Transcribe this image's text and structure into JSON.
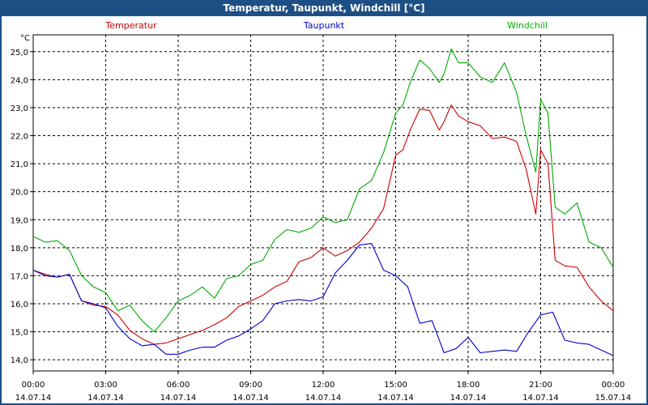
{
  "window": {
    "title": "Temperatur, Taupunkt, Windchill [°C]"
  },
  "chart_data": {
    "type": "line",
    "title": "Temperatur, Taupunkt, Windchill [°C]",
    "ylabel": "°C",
    "ylim": [
      13.6,
      25.6
    ],
    "yticks": [
      14.0,
      15.0,
      16.0,
      17.0,
      18.0,
      19.0,
      20.0,
      21.0,
      22.0,
      23.0,
      24.0,
      25.0
    ],
    "ytick_labels": [
      "14,0",
      "15,0",
      "16,0",
      "17,0",
      "18,0",
      "19,0",
      "20,0",
      "21,0",
      "22,0",
      "23,0",
      "24,0",
      "25,0"
    ],
    "xlim": [
      0,
      24
    ],
    "xticks": [
      0,
      3,
      6,
      9,
      12,
      15,
      18,
      21,
      24
    ],
    "xtick_times": [
      "00:00",
      "03:00",
      "06:00",
      "09:00",
      "12:00",
      "15:00",
      "18:00",
      "21:00",
      "00:00"
    ],
    "xtick_dates": [
      "14.07.14",
      "14.07.14",
      "14.07.14",
      "14.07.14",
      "14.07.14",
      "14.07.14",
      "14.07.14",
      "14.07.14",
      "15.07.14"
    ],
    "grid": true,
    "legend_placement": "top",
    "series": [
      {
        "name": "Temperatur",
        "color": "#cc0000",
        "x": [
          0,
          0.5,
          1.0,
          1.5,
          2.0,
          2.5,
          3.0,
          3.5,
          4.0,
          4.5,
          5.0,
          5.5,
          6.0,
          6.5,
          7.0,
          7.5,
          8.0,
          8.5,
          9.0,
          9.5,
          10.0,
          10.5,
          11.0,
          11.5,
          12.0,
          12.5,
          13.0,
          13.5,
          14.0,
          14.5,
          15.0,
          15.3,
          15.6,
          16.0,
          16.4,
          16.8,
          17.0,
          17.3,
          17.6,
          18.0,
          18.5,
          19.0,
          19.5,
          20.0,
          20.4,
          20.8,
          21.0,
          21.3,
          21.6,
          22.0,
          22.5,
          23.0,
          23.5,
          24.0
        ],
        "values": [
          17.2,
          17.05,
          16.95,
          17.05,
          16.1,
          15.95,
          15.9,
          15.6,
          15.05,
          14.75,
          14.55,
          14.6,
          14.75,
          14.9,
          15.05,
          15.25,
          15.5,
          15.9,
          16.1,
          16.3,
          16.6,
          16.8,
          17.5,
          17.65,
          18.0,
          17.7,
          17.9,
          18.2,
          18.7,
          19.4,
          21.3,
          21.5,
          22.2,
          22.95,
          22.9,
          22.2,
          22.5,
          23.1,
          22.7,
          22.5,
          22.35,
          21.9,
          21.95,
          21.8,
          20.8,
          19.2,
          21.5,
          21.0,
          17.55,
          17.35,
          17.3,
          16.6,
          16.1,
          15.75
        ]
      },
      {
        "name": "Taupunkt",
        "color": "#0000cc",
        "x": [
          0,
          0.5,
          1.0,
          1.5,
          2.0,
          2.5,
          3.0,
          3.5,
          4.0,
          4.5,
          5.0,
          5.5,
          6.0,
          6.5,
          7.0,
          7.5,
          8.0,
          8.5,
          9.0,
          9.5,
          10.0,
          10.5,
          11.0,
          11.5,
          12.0,
          12.5,
          13.0,
          13.5,
          14.0,
          14.5,
          15.0,
          15.5,
          16.0,
          16.5,
          17.0,
          17.5,
          18.0,
          18.5,
          19.0,
          19.5,
          20.0,
          20.5,
          21.0,
          21.5,
          22.0,
          22.5,
          23.0,
          23.5,
          24.0
        ],
        "values": [
          17.2,
          17.0,
          16.95,
          17.05,
          16.1,
          16.0,
          15.85,
          15.2,
          14.75,
          14.5,
          14.55,
          14.2,
          14.2,
          14.35,
          14.45,
          14.45,
          14.7,
          14.85,
          15.1,
          15.4,
          16.0,
          16.1,
          16.15,
          16.1,
          16.25,
          17.1,
          17.55,
          18.1,
          18.15,
          17.2,
          17.0,
          16.6,
          15.3,
          15.4,
          14.25,
          14.4,
          14.8,
          14.25,
          14.3,
          14.35,
          14.3,
          15.0,
          15.6,
          15.7,
          14.7,
          14.6,
          14.55,
          14.35,
          14.15
        ]
      },
      {
        "name": "Windchill",
        "color": "#00aa00",
        "x": [
          0,
          0.5,
          1.0,
          1.5,
          2.0,
          2.5,
          3.0,
          3.5,
          4.0,
          4.5,
          5.0,
          5.5,
          6.0,
          6.5,
          7.0,
          7.5,
          8.0,
          8.5,
          9.0,
          9.5,
          10.0,
          10.5,
          11.0,
          11.5,
          12.0,
          12.5,
          13.0,
          13.5,
          14.0,
          14.5,
          15.0,
          15.3,
          15.6,
          16.0,
          16.4,
          16.8,
          17.0,
          17.3,
          17.6,
          18.0,
          18.5,
          19.0,
          19.5,
          20.0,
          20.4,
          20.8,
          21.0,
          21.3,
          21.6,
          22.0,
          22.5,
          23.0,
          23.5,
          24.0
        ],
        "values": [
          18.4,
          18.2,
          18.25,
          17.9,
          17.0,
          16.6,
          16.4,
          15.75,
          15.95,
          15.4,
          15.0,
          15.5,
          16.1,
          16.3,
          16.6,
          16.2,
          16.9,
          17.0,
          17.4,
          17.55,
          18.3,
          18.65,
          18.55,
          18.7,
          19.1,
          18.9,
          19.0,
          20.1,
          20.4,
          21.4,
          22.8,
          23.1,
          23.9,
          24.7,
          24.4,
          23.9,
          24.2,
          25.1,
          24.6,
          24.6,
          24.1,
          23.9,
          24.6,
          23.55,
          22.0,
          20.7,
          23.3,
          22.8,
          19.45,
          19.2,
          19.6,
          18.2,
          18.0,
          17.3
        ]
      }
    ]
  }
}
